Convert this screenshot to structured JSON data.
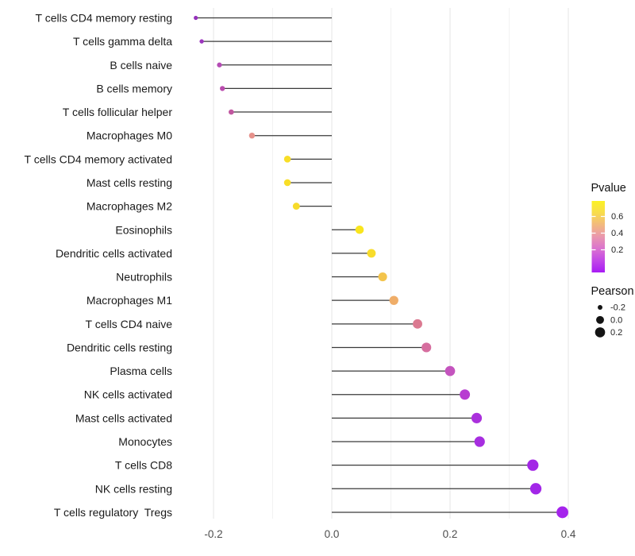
{
  "chart_data": {
    "type": "lollipop",
    "title": "",
    "xlabel": "",
    "ylabel": "",
    "x_ticks": [
      -0.2,
      0.0,
      0.2,
      0.4
    ],
    "x_tick_labels": [
      "-0.2",
      "0.0",
      "0.2",
      "0.4"
    ],
    "x_minor_ticks": [
      -0.1,
      0.1,
      0.3
    ],
    "xlim": [
      -0.265,
      0.42
    ],
    "baseline": 0.0,
    "grid": "vertical major+minor, no horizontal",
    "stem_color": "#3a3a3a",
    "points": [
      {
        "label": "T cells CD4 memory resting",
        "pearson": -0.23,
        "pvalue": 0.09,
        "color": "#9531BB"
      },
      {
        "label": "T cells gamma delta",
        "pearson": -0.22,
        "pvalue": 0.11,
        "color": "#9C36BE"
      },
      {
        "label": "B cells naive",
        "pearson": -0.19,
        "pvalue": 0.16,
        "color": "#B54CB5"
      },
      {
        "label": "B cells memory",
        "pearson": -0.185,
        "pvalue": 0.17,
        "color": "#BA4CAE"
      },
      {
        "label": "T cells follicular helper",
        "pearson": -0.17,
        "pvalue": 0.21,
        "color": "#C157A0"
      },
      {
        "label": "Macrophages M0",
        "pearson": -0.135,
        "pvalue": 0.42,
        "color": "#E6918B"
      },
      {
        "label": "T cells CD4 memory activated",
        "pearson": -0.075,
        "pvalue": 0.63,
        "color": "#F8DE27"
      },
      {
        "label": "Mast cells resting",
        "pearson": -0.075,
        "pvalue": 0.63,
        "color": "#F8DE27"
      },
      {
        "label": "Macrophages M2",
        "pearson": -0.06,
        "pvalue": 0.62,
        "color": "#F7DB2A"
      },
      {
        "label": "Eosinophils",
        "pearson": 0.047,
        "pvalue": 0.67,
        "color": "#F9E51E"
      },
      {
        "label": "Dendritic cells activated",
        "pearson": 0.067,
        "pvalue": 0.63,
        "color": "#F8DC2B"
      },
      {
        "label": "Neutrophils",
        "pearson": 0.086,
        "pvalue": 0.55,
        "color": "#F3C44C"
      },
      {
        "label": "Macrophages M1",
        "pearson": 0.105,
        "pvalue": 0.48,
        "color": "#EFAD68"
      },
      {
        "label": "T cells CD4 naive",
        "pearson": 0.145,
        "pvalue": 0.34,
        "color": "#DB7A91"
      },
      {
        "label": "Dendritic cells resting",
        "pearson": 0.16,
        "pvalue": 0.31,
        "color": "#D66E9F"
      },
      {
        "label": "Plasma cells",
        "pearson": 0.2,
        "pvalue": 0.21,
        "color": "#C454BE"
      },
      {
        "label": "NK cells activated",
        "pearson": 0.225,
        "pvalue": 0.16,
        "color": "#B83DD1"
      },
      {
        "label": "Mast cells activated",
        "pearson": 0.245,
        "pvalue": 0.12,
        "color": "#AA30DC"
      },
      {
        "label": "Monocytes",
        "pearson": 0.25,
        "pvalue": 0.11,
        "color": "#A72EE0"
      },
      {
        "label": "T cells CD8",
        "pearson": 0.34,
        "pvalue": 0.08,
        "color": "#A326E6"
      },
      {
        "label": "NK cells resting",
        "pearson": 0.345,
        "pvalue": 0.08,
        "color": "#A226E8"
      },
      {
        "label": "T cells regulatory  Tregs",
        "pearson": 0.39,
        "pvalue": 0.05,
        "color": "#A524EC"
      }
    ],
    "legends": {
      "pvalue": {
        "title": "Pvalue",
        "tick_labels": [
          "0.6",
          "0.4",
          "0.2"
        ],
        "gradient_top_to_bottom": [
          "#FBF224",
          "#F8DC4C",
          "#F2B97E",
          "#EA97AE",
          "#DB72CF",
          "#C248E7",
          "#A81BF4"
        ]
      },
      "pearson": {
        "title": "Pearson",
        "items": [
          {
            "label": "-0.2",
            "value": -0.2
          },
          {
            "label": "0.0",
            "value": 0.0
          },
          {
            "label": "0.2",
            "value": 0.2
          }
        ],
        "dot_color": "#141414"
      }
    }
  }
}
